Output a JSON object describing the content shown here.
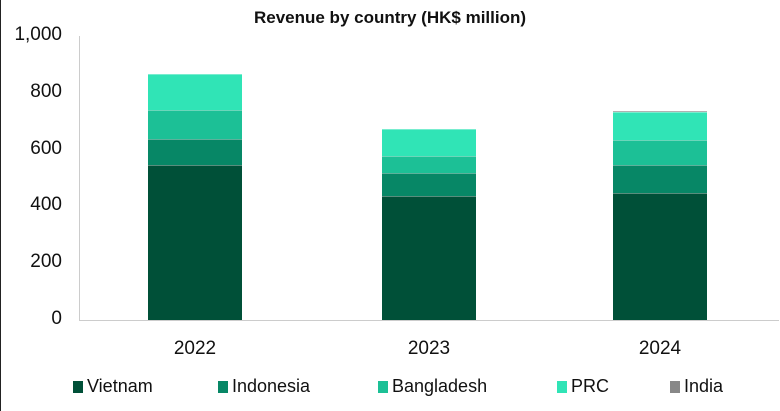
{
  "chart_data": {
    "type": "bar",
    "stacked": true,
    "title": "Revenue by country (HK$ million)",
    "xlabel": "",
    "ylabel": "",
    "ylim": [
      0,
      1000
    ],
    "yticks": [
      "0",
      "200",
      "400",
      "600",
      "800",
      "1,000"
    ],
    "grid": false,
    "legend_position": "bottom",
    "categories": [
      "2022",
      "2023",
      "2024"
    ],
    "series": [
      {
        "name": "Vietnam",
        "color": "#005038",
        "values": [
          546,
          437,
          447
        ]
      },
      {
        "name": "Indonesia",
        "color": "#078766",
        "values": [
          91,
          81,
          99
        ]
      },
      {
        "name": "Bangladesh",
        "color": "#1CC096",
        "values": [
          102,
          59,
          88
        ]
      },
      {
        "name": "PRC",
        "color": "#30E4B6",
        "values": [
          127,
          96,
          98
        ]
      },
      {
        "name": "India",
        "color": "#888888",
        "values": [
          0,
          0,
          4
        ]
      }
    ]
  }
}
